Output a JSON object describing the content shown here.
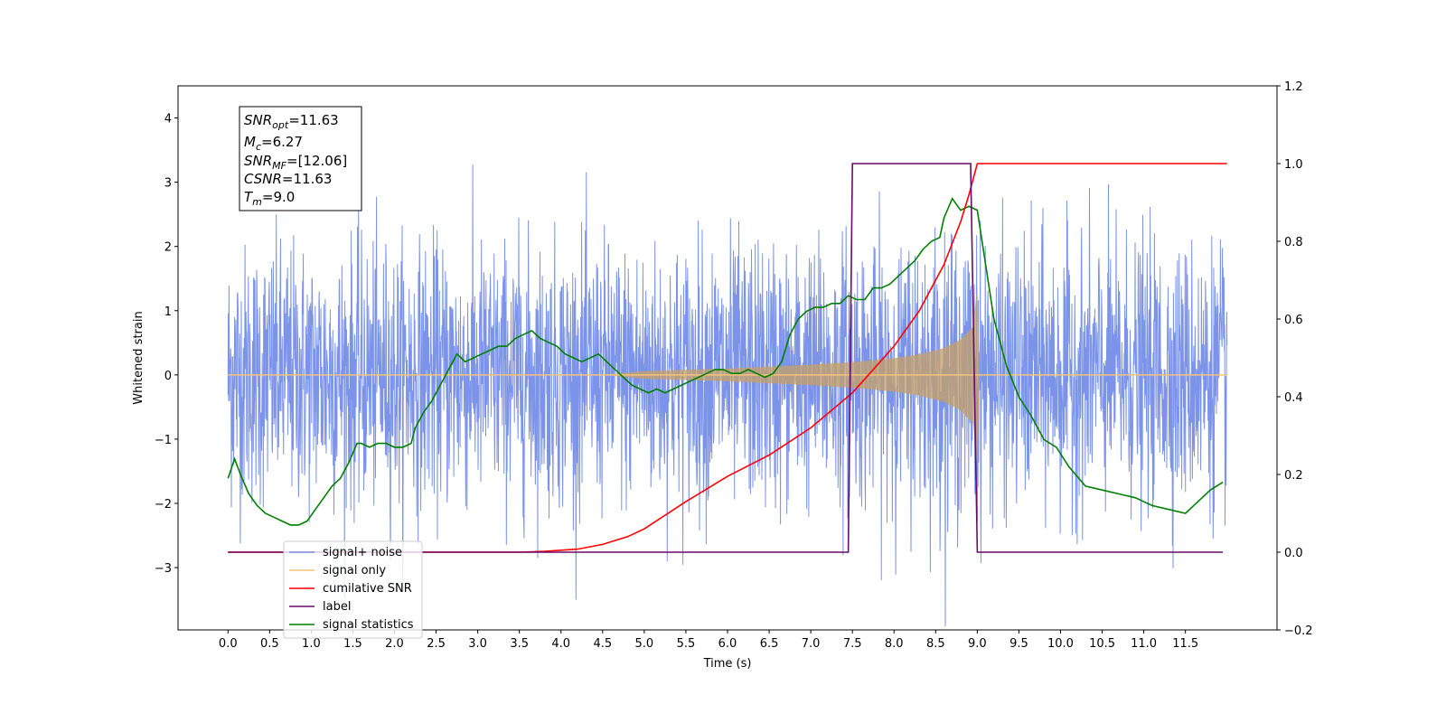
{
  "chart_data": {
    "type": "line",
    "xlabel": "Time (s)",
    "ylabel": "Whitened strain",
    "xlim": [
      -0.6,
      12.6
    ],
    "ylim": [
      -3.97,
      4.5
    ],
    "y2lim": [
      -0.2,
      1.2
    ],
    "x_ticks": [
      "0.0",
      "0.5",
      "1.0",
      "1.5",
      "2.0",
      "2.5",
      "3.0",
      "3.5",
      "4.0",
      "4.5",
      "5.0",
      "5.5",
      "6.0",
      "6.5",
      "7.0",
      "7.5",
      "8.0",
      "8.5",
      "9.0",
      "9.5",
      "10.0",
      "10.5",
      "11.0",
      "11.5"
    ],
    "y_ticks": [
      "4",
      "3",
      "2",
      "1",
      "0",
      "−1",
      "−2",
      "−3"
    ],
    "y2_ticks": [
      "1.2",
      "1.0",
      "0.8",
      "0.6",
      "0.4",
      "0.2",
      "0.0",
      "−0.2"
    ],
    "annotation": {
      "snr_opt": "=11.63",
      "mc": "=6.27",
      "snr_mf": "=[12.06]",
      "csnr": "=11.63",
      "tm": "=9.0"
    },
    "legend_position": "lower-left",
    "series": [
      {
        "name": "signal+ noise",
        "color": "#7b93e8",
        "axis": "left",
        "kind": "noise",
        "noise_sigma": 1.0,
        "x_range": [
          0,
          12
        ]
      },
      {
        "name": "signal only",
        "color": "#f5c37a",
        "axis": "left",
        "kind": "chirp",
        "merger_time": 9.0,
        "envelope": {
          "x": [
            4.5,
            5.0,
            5.5,
            6.0,
            6.5,
            7.0,
            7.5,
            8.0,
            8.3,
            8.6,
            8.8,
            8.95,
            9.0
          ],
          "y": [
            0.0,
            0.06,
            0.08,
            0.1,
            0.13,
            0.16,
            0.2,
            0.26,
            0.32,
            0.42,
            0.55,
            0.75,
            1.4
          ]
        }
      },
      {
        "name": "cumilative SNR",
        "color": "#ff0000",
        "axis": "right",
        "x": [
          0,
          3.0,
          3.5,
          3.8,
          4.2,
          4.5,
          4.8,
          5.0,
          5.5,
          6.0,
          6.5,
          7.0,
          7.5,
          8.0,
          8.3,
          8.6,
          8.8,
          8.9,
          8.95,
          9.0,
          12.0
        ],
        "y": [
          0,
          0,
          0.0,
          0.002,
          0.008,
          0.02,
          0.04,
          0.06,
          0.13,
          0.195,
          0.25,
          0.32,
          0.41,
          0.53,
          0.62,
          0.74,
          0.85,
          0.92,
          0.96,
          1.0,
          1.0
        ]
      },
      {
        "name": "label",
        "color": "#6a0a6a",
        "axis": "right",
        "x": [
          0,
          7.45,
          7.5,
          8.92,
          9.0,
          11.95
        ],
        "y": [
          0,
          0,
          1,
          1,
          0,
          0
        ]
      },
      {
        "name": "signal statistics",
        "color": "#008000",
        "axis": "right",
        "x": [
          0,
          0.08,
          0.15,
          0.25,
          0.35,
          0.45,
          0.55,
          0.65,
          0.75,
          0.85,
          0.95,
          1.05,
          1.15,
          1.25,
          1.35,
          1.45,
          1.55,
          1.6,
          1.7,
          1.8,
          1.9,
          2.0,
          2.1,
          2.2,
          2.25,
          2.35,
          2.45,
          2.55,
          2.65,
          2.75,
          2.85,
          2.95,
          3.05,
          3.15,
          3.25,
          3.35,
          3.45,
          3.55,
          3.65,
          3.75,
          3.85,
          3.95,
          4.05,
          4.15,
          4.25,
          4.35,
          4.45,
          4.55,
          4.65,
          4.75,
          4.85,
          4.95,
          5.05,
          5.15,
          5.25,
          5.35,
          5.45,
          5.55,
          5.65,
          5.75,
          5.85,
          5.95,
          6.05,
          6.15,
          6.25,
          6.35,
          6.45,
          6.55,
          6.65,
          6.75,
          6.85,
          6.95,
          7.05,
          7.15,
          7.25,
          7.35,
          7.45,
          7.55,
          7.65,
          7.75,
          7.85,
          7.95,
          8.05,
          8.15,
          8.25,
          8.35,
          8.45,
          8.55,
          8.6,
          8.7,
          8.8,
          8.9,
          9.0,
          9.1,
          9.2,
          9.35,
          9.5,
          9.65,
          9.8,
          9.95,
          10.1,
          10.3,
          10.5,
          10.7,
          10.9,
          11.1,
          11.3,
          11.5,
          11.65,
          11.8,
          11.95
        ],
        "y": [
          0.19,
          0.24,
          0.2,
          0.15,
          0.12,
          0.1,
          0.09,
          0.08,
          0.07,
          0.07,
          0.08,
          0.11,
          0.14,
          0.17,
          0.19,
          0.23,
          0.28,
          0.28,
          0.27,
          0.28,
          0.28,
          0.27,
          0.27,
          0.28,
          0.32,
          0.36,
          0.39,
          0.43,
          0.47,
          0.51,
          0.49,
          0.5,
          0.51,
          0.52,
          0.53,
          0.53,
          0.55,
          0.56,
          0.57,
          0.55,
          0.54,
          0.53,
          0.51,
          0.5,
          0.49,
          0.5,
          0.51,
          0.49,
          0.47,
          0.45,
          0.43,
          0.42,
          0.41,
          0.42,
          0.41,
          0.42,
          0.43,
          0.44,
          0.45,
          0.46,
          0.47,
          0.47,
          0.46,
          0.46,
          0.47,
          0.46,
          0.45,
          0.46,
          0.49,
          0.56,
          0.6,
          0.62,
          0.63,
          0.63,
          0.64,
          0.64,
          0.66,
          0.65,
          0.65,
          0.68,
          0.68,
          0.69,
          0.71,
          0.73,
          0.75,
          0.78,
          0.8,
          0.81,
          0.86,
          0.91,
          0.88,
          0.89,
          0.88,
          0.74,
          0.6,
          0.48,
          0.4,
          0.35,
          0.29,
          0.27,
          0.22,
          0.17,
          0.16,
          0.15,
          0.14,
          0.12,
          0.11,
          0.1,
          0.13,
          0.16,
          0.18
        ]
      }
    ]
  }
}
